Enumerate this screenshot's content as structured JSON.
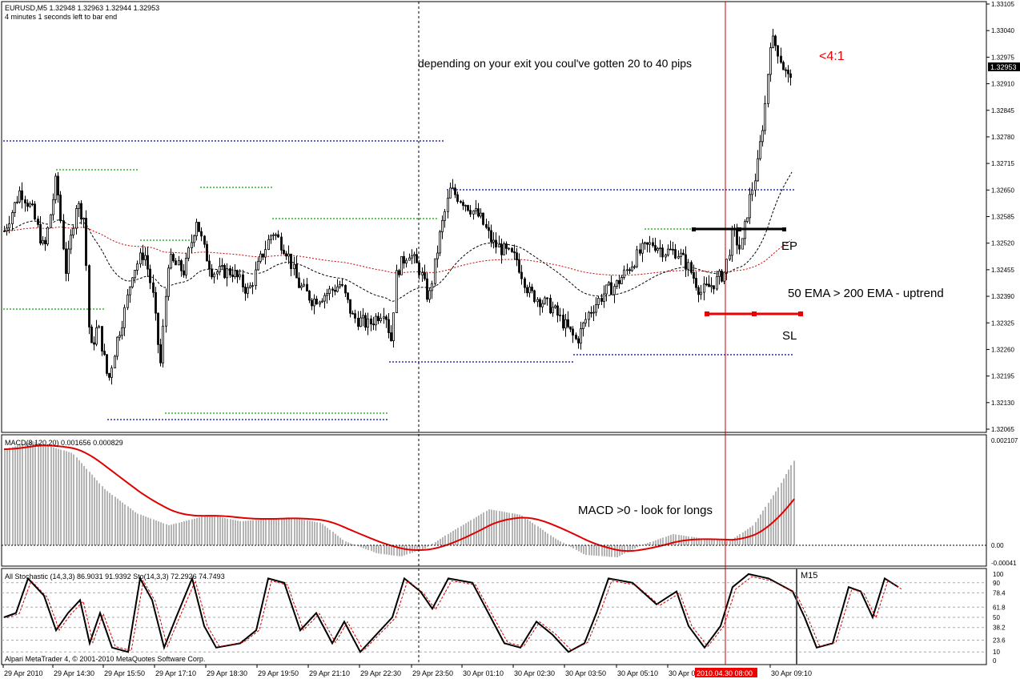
{
  "header": {
    "symbol_line": "EURUSD,M5  1.32948 1.32963 1.32944 1.32953",
    "timer_line": "4 minutes 1 seconds left to bar end"
  },
  "annotations": {
    "exit_note": "depending on your exit you coul've gotten 20 to 40 pips",
    "ratio": "<4:1",
    "ep": "EP",
    "ema_note": "50 EMA > 200 EMA - uptrend",
    "sl": "SL",
    "macd_note": "MACD >0 - look for longs",
    "m15": "M15"
  },
  "indicators": {
    "macd_label": "MACD(8,120,20) 0.001656 0.000829",
    "stoch_label": "All Stochastic (14,3,3) 86.9031 91.9392  Sto(14,3,3) 72.2926 74.7493"
  },
  "footer": {
    "copyright": "Alpari MetaTrader 4, © 2001-2010 MetaQuotes Software Corp."
  },
  "colors": {
    "candle": "#000000",
    "ema50": "#000000",
    "ema200": "#cc0000",
    "resistance": "#00aa00",
    "support": "#000099",
    "macd_hist": "#b4b4b4",
    "macd_signal": "#e00000",
    "vline": "#cc0000",
    "sl_line": "#ee0000",
    "ep_line": "#000000",
    "current_price_bg": "#000000",
    "date_highlight": "#ee0000"
  },
  "chart_data": [
    {
      "type": "candlestick",
      "panel": "price",
      "y_range": [
        1.3203,
        1.3313
      ],
      "price_ticks": [
        "1.33105",
        "1.33040",
        "1.32975",
        "1.32910",
        "1.32845",
        "1.32780",
        "1.32715",
        "1.32650",
        "1.32585",
        "1.32520",
        "1.32455",
        "1.32390",
        "1.32325",
        "1.32260",
        "1.32195",
        "1.32130",
        "1.32065"
      ],
      "current_price": "1.32953",
      "levels": {
        "entry": 1.32565,
        "stop_loss": 1.32355
      },
      "lines": [
        {
          "name": "50 EMA"
        },
        {
          "name": "200 EMA"
        }
      ]
    },
    {
      "type": "bar",
      "panel": "macd",
      "y_ticks": [
        "0.002107",
        "0.00",
        "-0.00041"
      ],
      "zero_line": true
    },
    {
      "type": "line",
      "panel": "stochastic",
      "y_ticks": [
        "100",
        "90",
        "78.4",
        "61.8",
        "50",
        "38.2",
        "23.6",
        "10",
        "0"
      ]
    }
  ],
  "time_axis": {
    "labels": [
      "29 Apr 2010",
      "29 Apr 14:30",
      "29 Apr 15:50",
      "29 Apr 17:10",
      "29 Apr 18:30",
      "29 Apr 19:50",
      "29 Apr 21:10",
      "29 Apr 22:30",
      "29 Apr 23:50",
      "30 Apr 01:10",
      "30 Apr 02:30",
      "30 Apr 03:50",
      "30 Apr 05:10",
      "30 Apr 06:30",
      "30 Apr 09:10"
    ],
    "highlight": "2010.04.30 08:00"
  }
}
